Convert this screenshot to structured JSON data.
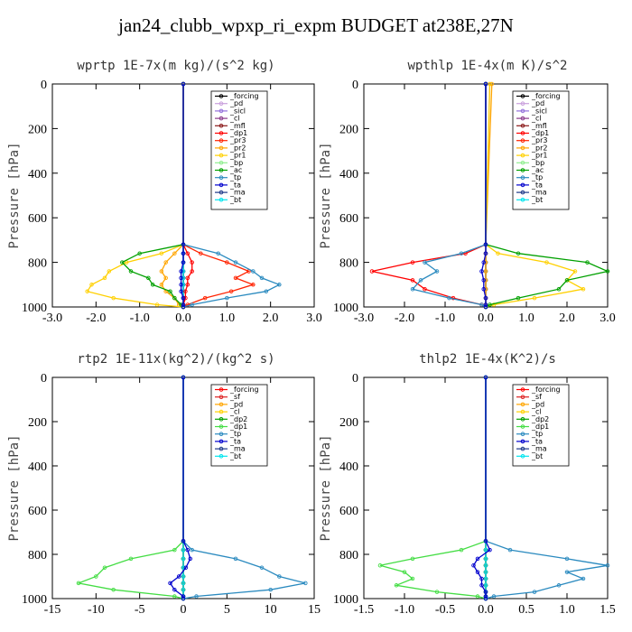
{
  "figure_title": "jan24_clubb_wpxp_ri_expm  BUDGET at238E,27N",
  "chart_data": [
    {
      "type": "line",
      "title": "wprtp  1E-7x(m kg)/(s^2 kg)",
      "ylabel": "Pressure [hPa]",
      "xlim": [
        -3.0,
        3.0
      ],
      "ylim": [
        1000,
        0
      ],
      "xticks": [
        "-3.0",
        "-2.0",
        "-1.0",
        "0.0",
        "1.0",
        "2.0",
        "3.0"
      ],
      "yticks": [
        "0",
        "200",
        "400",
        "600",
        "800",
        "1000"
      ],
      "grid": false,
      "legend_position": "top-right",
      "pressure": [
        0,
        720,
        760,
        800,
        840,
        870,
        900,
        930,
        960,
        990,
        1000
      ],
      "series": [
        {
          "name": "_forcing",
          "color": "#000000",
          "values": [
            0,
            0,
            0,
            0,
            0,
            0,
            0,
            0,
            0,
            0,
            0
          ]
        },
        {
          "name": "_pd",
          "color": "#c9a0dc",
          "values": [
            0,
            0,
            0,
            0,
            0,
            0,
            0,
            0,
            0,
            0,
            0
          ]
        },
        {
          "name": "_sicl",
          "color": "#9370db",
          "values": [
            0,
            0,
            0,
            0,
            0,
            0,
            0,
            0,
            0,
            0,
            0
          ]
        },
        {
          "name": "_cl",
          "color": "#8b3a8b",
          "values": [
            0,
            0,
            0,
            0,
            0,
            0,
            0,
            0,
            0,
            0,
            0
          ]
        },
        {
          "name": "_mfl",
          "color": "#8b1a1a",
          "values": [
            0,
            0,
            0,
            0,
            0,
            0,
            0,
            0,
            0,
            0,
            0
          ]
        },
        {
          "name": "_dp1",
          "color": "#ff0000",
          "values": [
            0,
            0,
            0.1,
            0.2,
            0.2,
            0.1,
            0.1,
            0.05,
            0.05,
            0,
            0
          ]
        },
        {
          "name": "_pr3",
          "color": "#ff2200",
          "values": [
            0,
            0,
            0.4,
            1.0,
            1.5,
            1.2,
            1.6,
            1.1,
            0.5,
            0.1,
            0
          ]
        },
        {
          "name": "_pr2",
          "color": "#ffa500",
          "values": [
            0,
            0,
            -0.2,
            -0.4,
            -0.5,
            -0.4,
            -0.5,
            -0.4,
            -0.2,
            -0.1,
            0
          ]
        },
        {
          "name": "_pr1",
          "color": "#ffd000",
          "values": [
            0,
            0,
            -0.5,
            -1.3,
            -1.7,
            -1.8,
            -2.1,
            -2.2,
            -1.6,
            -0.6,
            0
          ]
        },
        {
          "name": "_bp",
          "color": "#90ee90",
          "values": [
            0,
            0,
            0,
            0,
            0,
            0,
            0,
            0,
            0,
            0,
            0
          ]
        },
        {
          "name": "_ac",
          "color": "#00a000",
          "values": [
            0,
            0,
            -1.0,
            -1.4,
            -1.2,
            -0.8,
            -0.7,
            -0.3,
            -0.2,
            -0.05,
            0
          ]
        },
        {
          "name": "_tp",
          "color": "#2a8abf",
          "values": [
            0,
            0,
            0.8,
            1.2,
            1.6,
            1.8,
            2.2,
            1.9,
            1.0,
            0.2,
            0
          ]
        },
        {
          "name": "_ta",
          "color": "#0000cd",
          "values": [
            0,
            0,
            0,
            0,
            -0.05,
            -0.05,
            -0.05,
            -0.05,
            0,
            0,
            0
          ]
        },
        {
          "name": "_ma",
          "color": "#1e3a8a",
          "values": [
            0,
            0,
            0,
            0,
            0,
            0,
            0,
            0,
            0,
            0,
            0
          ]
        },
        {
          "name": "_bt",
          "color": "#00e5ee",
          "values": [
            0,
            0,
            0,
            0,
            0,
            0,
            0,
            0,
            0,
            0,
            0
          ]
        }
      ]
    },
    {
      "type": "line",
      "title": "wpthlp  1E-4x(m K)/s^2",
      "ylabel": "Pressure [hPa]",
      "xlim": [
        -3.0,
        3.0
      ],
      "ylim": [
        1000,
        0
      ],
      "xticks": [
        "-3.0",
        "-2.0",
        "-1.0",
        "0.0",
        "1.0",
        "2.0",
        "3.0"
      ],
      "yticks": [
        "0",
        "200",
        "400",
        "600",
        "800",
        "1000"
      ],
      "grid": false,
      "legend_position": "top-right",
      "pressure": [
        0,
        720,
        760,
        800,
        840,
        880,
        920,
        960,
        990,
        1000
      ],
      "series": [
        {
          "name": "_forcing",
          "color": "#000000",
          "values": [
            0,
            0,
            0,
            0,
            0,
            0,
            0,
            0,
            0,
            0
          ]
        },
        {
          "name": "_pd",
          "color": "#c9a0dc",
          "values": [
            0.1,
            0,
            0,
            0,
            0,
            0,
            0,
            0,
            0,
            0
          ]
        },
        {
          "name": "_sicl",
          "color": "#9370db",
          "values": [
            0,
            0,
            0,
            0,
            0,
            0,
            0,
            0,
            0,
            0
          ]
        },
        {
          "name": "_cl",
          "color": "#8b3a8b",
          "values": [
            0,
            0,
            0,
            0,
            0,
            0,
            0,
            0,
            0,
            0
          ]
        },
        {
          "name": "_mfl",
          "color": "#8b1a1a",
          "values": [
            0,
            0,
            0,
            0,
            0,
            0,
            0,
            0,
            0,
            0
          ]
        },
        {
          "name": "_dp1",
          "color": "#ff0000",
          "values": [
            0,
            0,
            -0.5,
            -1.8,
            -2.8,
            -1.8,
            -1.5,
            -0.8,
            -0.1,
            0
          ]
        },
        {
          "name": "_pr3",
          "color": "#ff2200",
          "values": [
            0,
            0,
            0,
            0,
            0,
            0,
            0,
            0,
            0,
            0
          ]
        },
        {
          "name": "_pr2",
          "color": "#ffa500",
          "values": [
            0.15,
            0,
            0,
            0,
            0,
            0,
            0,
            0,
            0,
            0
          ]
        },
        {
          "name": "_pr1",
          "color": "#ffd000",
          "values": [
            0.1,
            0,
            0.3,
            1.5,
            2.2,
            2.0,
            2.4,
            1.2,
            0.2,
            0
          ]
        },
        {
          "name": "_bp",
          "color": "#90ee90",
          "values": [
            0,
            0,
            0,
            0,
            0,
            0,
            0,
            0,
            0,
            0
          ]
        },
        {
          "name": "_ac",
          "color": "#00a000",
          "values": [
            0,
            0,
            0.8,
            2.5,
            3.0,
            2.0,
            1.8,
            0.8,
            0.1,
            0
          ]
        },
        {
          "name": "_tp",
          "color": "#2a8abf",
          "values": [
            0,
            0,
            -0.6,
            -1.5,
            -1.2,
            -1.6,
            -1.8,
            -0.9,
            -0.1,
            0
          ]
        },
        {
          "name": "_ta",
          "color": "#0000cd",
          "values": [
            0,
            0,
            0,
            -0.05,
            -0.1,
            -0.05,
            -0.05,
            0,
            0,
            0
          ]
        },
        {
          "name": "_ma",
          "color": "#1e3a8a",
          "values": [
            0,
            0,
            0,
            0,
            0,
            0,
            0,
            0,
            0,
            0
          ]
        },
        {
          "name": "_bt",
          "color": "#00e5ee",
          "values": [
            0,
            0,
            0,
            0,
            0,
            0,
            0,
            0,
            0,
            0
          ]
        }
      ]
    },
    {
      "type": "line",
      "title": "rtp2  1E-11x(kg^2)/(kg^2 s)",
      "ylabel": "Pressure [hPa]",
      "xlim": [
        -15,
        15
      ],
      "ylim": [
        1000,
        0
      ],
      "xticks": [
        "-15",
        "-10",
        "-5",
        "0",
        "5",
        "10",
        "15"
      ],
      "yticks": [
        "0",
        "200",
        "400",
        "600",
        "800",
        "1000"
      ],
      "grid": false,
      "legend_position": "top-right",
      "pressure": [
        0,
        740,
        780,
        820,
        860,
        900,
        930,
        960,
        990,
        1000
      ],
      "series": [
        {
          "name": "_forcing",
          "color": "#ff0000",
          "values": [
            0,
            0,
            0,
            0,
            0,
            0,
            0,
            0,
            0,
            0
          ]
        },
        {
          "name": "_sf",
          "color": "#dd2222",
          "values": [
            0,
            0,
            0,
            0,
            0,
            0,
            0,
            0,
            0,
            0
          ]
        },
        {
          "name": "_pd",
          "color": "#ffa500",
          "values": [
            0,
            0,
            0,
            0,
            0,
            0,
            0,
            0,
            0,
            0
          ]
        },
        {
          "name": "_cl",
          "color": "#ffd000",
          "values": [
            0,
            0,
            0,
            0,
            0,
            0,
            0,
            0,
            0,
            0
          ]
        },
        {
          "name": "_dp2",
          "color": "#00a000",
          "values": [
            0,
            0,
            0,
            0,
            0,
            0,
            0,
            0,
            0,
            0
          ]
        },
        {
          "name": "_dp1",
          "color": "#44dd44",
          "values": [
            0,
            0,
            -1.0,
            -6.0,
            -9.0,
            -10.0,
            -12.0,
            -8.0,
            -1.0,
            0
          ]
        },
        {
          "name": "_tp",
          "color": "#2a8abf",
          "values": [
            0,
            0,
            1.0,
            6.0,
            9.0,
            11.0,
            14.0,
            10.0,
            1.5,
            0
          ]
        },
        {
          "name": "_ta",
          "color": "#0000cd",
          "values": [
            0,
            0,
            0.5,
            0.8,
            0.3,
            -0.5,
            -1.5,
            -1.0,
            0,
            0
          ]
        },
        {
          "name": "_ma",
          "color": "#1e3a8a",
          "values": [
            0,
            0,
            0,
            0,
            0,
            0,
            0,
            0,
            0,
            0
          ]
        },
        {
          "name": "_bt",
          "color": "#00e5ee",
          "values": [
            0,
            0,
            0,
            0,
            0,
            0,
            0,
            0,
            0,
            0
          ]
        }
      ]
    },
    {
      "type": "line",
      "title": "thlp2  1E-4x(K^2)/s",
      "ylabel": "Pressure [hPa]",
      "xlim": [
        -1.5,
        1.5
      ],
      "ylim": [
        1000,
        0
      ],
      "xticks": [
        "-1.5",
        "-1.0",
        "-0.5",
        "0.0",
        "0.5",
        "1.0",
        "1.5"
      ],
      "yticks": [
        "0",
        "200",
        "400",
        "600",
        "800",
        "1000"
      ],
      "grid": false,
      "legend_position": "top-right",
      "pressure": [
        0,
        740,
        780,
        820,
        850,
        880,
        910,
        940,
        970,
        990,
        1000
      ],
      "series": [
        {
          "name": "_forcing",
          "color": "#ff0000",
          "values": [
            0,
            0,
            0,
            0,
            0,
            0,
            0,
            0,
            0,
            0,
            0
          ]
        },
        {
          "name": "_sf",
          "color": "#dd2222",
          "values": [
            0,
            0,
            0,
            0,
            0,
            0,
            0,
            0,
            0,
            0,
            0
          ]
        },
        {
          "name": "_pd",
          "color": "#ffa500",
          "values": [
            0,
            0,
            0,
            0,
            0,
            0,
            0,
            0,
            0,
            0,
            0
          ]
        },
        {
          "name": "_cl",
          "color": "#ffd000",
          "values": [
            0,
            0,
            0,
            0,
            0,
            0,
            0,
            0,
            0,
            0,
            0
          ]
        },
        {
          "name": "_dp2",
          "color": "#00a000",
          "values": [
            0,
            0,
            0,
            0,
            0,
            0,
            0,
            0,
            0,
            0,
            0
          ]
        },
        {
          "name": "_dp1",
          "color": "#44dd44",
          "values": [
            0,
            0,
            -0.3,
            -0.9,
            -1.3,
            -1.0,
            -0.9,
            -1.1,
            -0.6,
            -0.1,
            0
          ]
        },
        {
          "name": "_tp",
          "color": "#2a8abf",
          "values": [
            0,
            0,
            0.3,
            1.0,
            1.5,
            1.0,
            1.2,
            0.9,
            0.6,
            0.1,
            0
          ]
        },
        {
          "name": "_ta",
          "color": "#0000cd",
          "values": [
            0,
            0,
            0.05,
            -0.1,
            -0.15,
            -0.1,
            -0.05,
            -0.05,
            0,
            0,
            0
          ]
        },
        {
          "name": "_ma",
          "color": "#1e3a8a",
          "values": [
            0,
            0,
            0,
            0,
            0,
            0,
            0,
            0,
            0,
            0,
            0
          ]
        },
        {
          "name": "_bt",
          "color": "#00e5ee",
          "values": [
            0,
            0,
            0,
            0,
            0,
            0,
            0,
            0,
            0,
            0,
            0
          ]
        }
      ]
    }
  ]
}
